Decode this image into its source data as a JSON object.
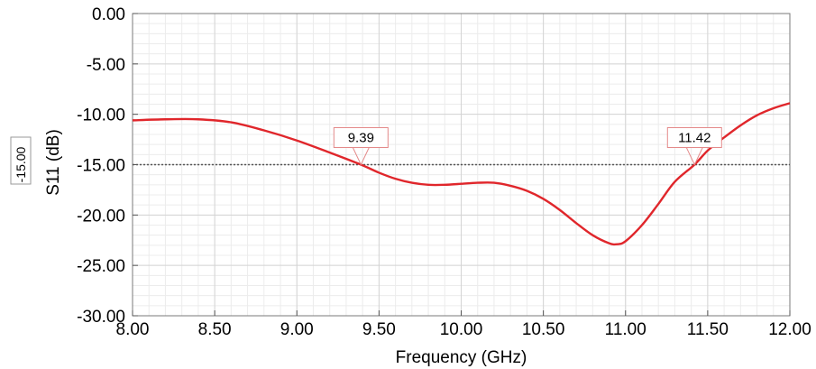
{
  "chart_data": {
    "type": "line",
    "title": "",
    "xlabel": "Frequency (GHz)",
    "ylabel": "S11 (dB)",
    "xlim": [
      8.0,
      12.0
    ],
    "ylim": [
      -30.0,
      0.0
    ],
    "x_ticks": [
      "8.00",
      "8.50",
      "9.00",
      "9.50",
      "10.00",
      "10.50",
      "11.00",
      "11.50",
      "12.00"
    ],
    "y_ticks": [
      "0.00",
      "-5.00",
      "-10.00",
      "-15.00",
      "-20.00",
      "-25.00",
      "-30.00"
    ],
    "grid": true,
    "series": [
      {
        "color": "#e0262b",
        "x": [
          8.0,
          8.2,
          8.4,
          8.6,
          8.8,
          9.0,
          9.2,
          9.39,
          9.5,
          9.6,
          9.7,
          9.8,
          9.9,
          10.0,
          10.1,
          10.2,
          10.3,
          10.4,
          10.5,
          10.6,
          10.7,
          10.8,
          10.9,
          10.95,
          11.0,
          11.1,
          11.2,
          11.3,
          11.42,
          11.5,
          11.6,
          11.7,
          11.8,
          11.9,
          12.0
        ],
        "y": [
          -10.6,
          -10.5,
          -10.5,
          -10.8,
          -11.6,
          -12.6,
          -13.8,
          -15.0,
          -15.8,
          -16.4,
          -16.8,
          -17.0,
          -17.0,
          -16.9,
          -16.8,
          -16.8,
          -17.1,
          -17.6,
          -18.4,
          -19.5,
          -20.8,
          -22.0,
          -22.8,
          -22.9,
          -22.6,
          -21.0,
          -18.9,
          -16.7,
          -15.0,
          -13.6,
          -12.3,
          -11.1,
          -10.1,
          -9.4,
          -8.9
        ]
      }
    ],
    "reference_line": {
      "y": -15.0,
      "label": "-15.00",
      "color": "#555555"
    },
    "markers": [
      {
        "x": 9.39,
        "y": -15.0,
        "label": "9.39"
      },
      {
        "x": 11.42,
        "y": -15.0,
        "label": "11.42"
      }
    ]
  }
}
